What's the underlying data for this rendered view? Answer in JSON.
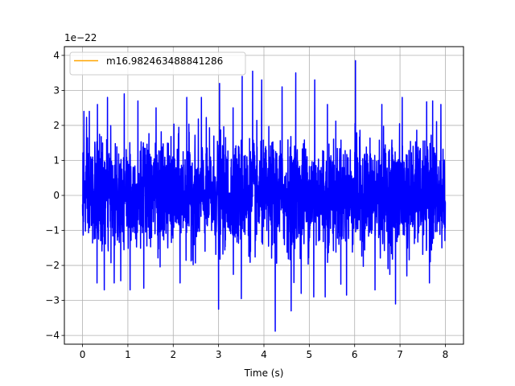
{
  "chart_data": {
    "type": "line",
    "title": "",
    "xlabel": "Time (s)",
    "ylabel": "",
    "y_offset_text": "1e−22",
    "xlim": [
      -0.4,
      8.4
    ],
    "ylim": [
      -4.25,
      4.25
    ],
    "x_ticks": [
      0,
      1,
      2,
      3,
      4,
      5,
      6,
      7,
      8
    ],
    "x_tick_labels": [
      "0",
      "1",
      "2",
      "3",
      "4",
      "5",
      "6",
      "7",
      "8"
    ],
    "y_ticks": [
      -4,
      -3,
      -2,
      -1,
      0,
      1,
      2,
      3,
      4
    ],
    "y_tick_labels": [
      "−4",
      "−3",
      "−2",
      "−1",
      "0",
      "1",
      "2",
      "3",
      "4"
    ],
    "grid": true,
    "legend_position": "upper-left",
    "series": [
      {
        "name": "m16.982463488841286",
        "legend_color": "#ffa500",
        "line_color": "#0000ff",
        "x_range": [
          0,
          8
        ],
        "noise_sigma": 0.75,
        "envelope_max": 2.7,
        "spikes": [
          {
            "x": 0.03,
            "y": 2.4
          },
          {
            "x": 0.15,
            "y": 2.4
          },
          {
            "x": 0.33,
            "y": 2.6
          },
          {
            "x": 0.55,
            "y": 2.8
          },
          {
            "x": 0.92,
            "y": 2.9
          },
          {
            "x": 1.22,
            "y": 2.7
          },
          {
            "x": 1.62,
            "y": 2.5
          },
          {
            "x": 2.3,
            "y": 2.8
          },
          {
            "x": 2.62,
            "y": 2.8
          },
          {
            "x": 3.02,
            "y": 3.2
          },
          {
            "x": 3.32,
            "y": 2.5
          },
          {
            "x": 3.52,
            "y": 3.4
          },
          {
            "x": 3.75,
            "y": 3.55
          },
          {
            "x": 3.95,
            "y": 3.3
          },
          {
            "x": 4.4,
            "y": 3.1
          },
          {
            "x": 4.7,
            "y": 3.5
          },
          {
            "x": 5.12,
            "y": 3.3
          },
          {
            "x": 5.4,
            "y": 2.6
          },
          {
            "x": 6.02,
            "y": 3.85
          },
          {
            "x": 6.6,
            "y": 2.6
          },
          {
            "x": 7.05,
            "y": 2.8
          },
          {
            "x": 7.72,
            "y": 2.7
          },
          {
            "x": 7.9,
            "y": 2.6
          },
          {
            "x": 0.32,
            "y": -2.5
          },
          {
            "x": 0.48,
            "y": -2.7
          },
          {
            "x": 1.05,
            "y": -2.7
          },
          {
            "x": 1.35,
            "y": -2.65
          },
          {
            "x": 3.0,
            "y": -3.25
          },
          {
            "x": 3.5,
            "y": -2.95
          },
          {
            "x": 4.25,
            "y": -3.88
          },
          {
            "x": 4.6,
            "y": -3.3
          },
          {
            "x": 4.82,
            "y": -2.8
          },
          {
            "x": 5.35,
            "y": -2.9
          },
          {
            "x": 5.82,
            "y": -2.85
          },
          {
            "x": 6.9,
            "y": -3.1
          },
          {
            "x": 7.15,
            "y": -2.3
          },
          {
            "x": 7.65,
            "y": -2.5
          },
          {
            "x": 0.7,
            "y": -2.5
          },
          {
            "x": 2.15,
            "y": -2.5
          },
          {
            "x": 5.1,
            "y": -2.9
          },
          {
            "x": 6.45,
            "y": -2.7
          }
        ]
      }
    ]
  }
}
